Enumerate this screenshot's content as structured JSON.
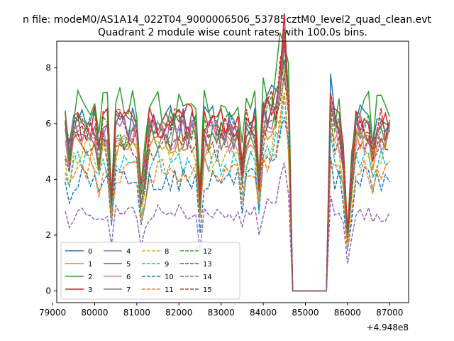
{
  "chart_data": {
    "type": "line",
    "suptitle": "n file: modeM0/AS1A14_022T04_9000006506_53785cztM0_level2_quad_clean.evt",
    "title": "Quadrant 2 module wise count rates with 100.0s bins.",
    "xlabel": "",
    "ylabel": "",
    "x_offset_label": "+4.948e8",
    "xlim": [
      79100,
      87450
    ],
    "ylim": [
      -0.42,
      8.95
    ],
    "xticks": [
      79000,
      80000,
      81000,
      82000,
      83000,
      84000,
      85000,
      86000,
      87000
    ],
    "yticks": [
      0,
      2,
      4,
      6,
      8
    ],
    "x_start": 79300,
    "x_step": 100,
    "x_end": 87000,
    "gap_range": [
      84700,
      85500
    ],
    "legend": {
      "position": "lower left",
      "columns": 4,
      "entries": [
        "0",
        "1",
        "2",
        "3",
        "4",
        "5",
        "6",
        "7",
        "8",
        "9",
        "10",
        "11",
        "12",
        "13",
        "14",
        "15"
      ]
    },
    "series": [
      {
        "name": "0",
        "color": "#1f77b4",
        "dash": "solid",
        "base": 6.0
      },
      {
        "name": "1",
        "color": "#ff7f0e",
        "dash": "solid",
        "base": 5.4
      },
      {
        "name": "2",
        "color": "#2ca02c",
        "dash": "solid",
        "base": 6.6
      },
      {
        "name": "3",
        "color": "#d62728",
        "dash": "solid",
        "base": 6.1
      },
      {
        "name": "4",
        "color": "#9467bd",
        "dash": "solid",
        "base": 5.7
      },
      {
        "name": "5",
        "color": "#8c564b",
        "dash": "solid",
        "base": 5.8
      },
      {
        "name": "6",
        "color": "#e377c2",
        "dash": "solid",
        "base": 5.5
      },
      {
        "name": "7",
        "color": "#7f7f7f",
        "dash": "solid",
        "base": 5.6
      },
      {
        "name": "8",
        "color": "#bcbd22",
        "dash": "dashed",
        "base": 5.0
      },
      {
        "name": "9",
        "color": "#17becf",
        "dash": "dashed",
        "base": 4.6
      },
      {
        "name": "10",
        "color": "#1f77b4",
        "dash": "dashed",
        "base": 4.0
      },
      {
        "name": "11",
        "color": "#ff7f0e",
        "dash": "dashed",
        "base": 4.3
      },
      {
        "name": "12",
        "color": "#2ca02c",
        "dash": "dashed",
        "base": 5.8
      },
      {
        "name": "13",
        "color": "#d62728",
        "dash": "dashed",
        "base": 5.9
      },
      {
        "name": "14",
        "color": "#9467bd",
        "dash": "dashed",
        "base": 2.8
      },
      {
        "name": "15",
        "color": "#8c564b",
        "dash": "dashed",
        "base": 5.2
      }
    ]
  }
}
